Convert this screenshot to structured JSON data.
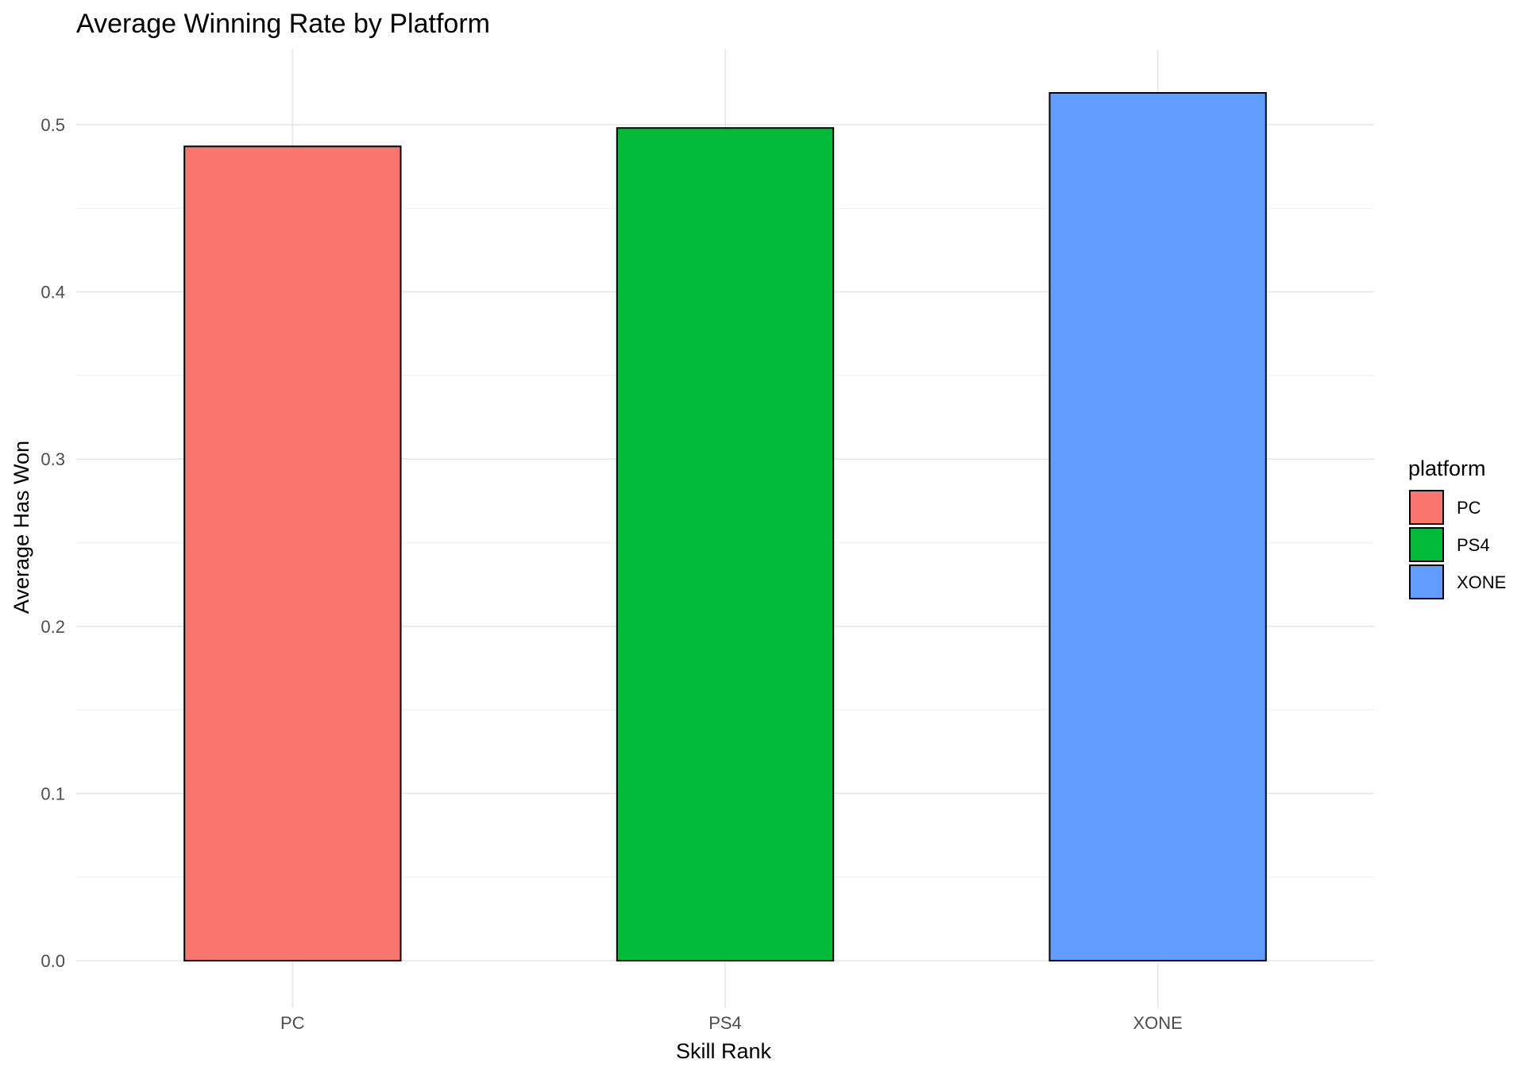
{
  "chart_data": {
    "type": "bar",
    "title": "Average Winning Rate by Platform",
    "xlabel": "Skill Rank",
    "ylabel": "Average Has Won",
    "categories": [
      "PC",
      "PS4",
      "XONE"
    ],
    "values": [
      0.487,
      0.498,
      0.519
    ],
    "colors": [
      "#F8766D",
      "#00BA38",
      "#619CFF"
    ],
    "ylim": [
      0,
      0.545
    ],
    "yticks": [
      0.0,
      0.1,
      0.2,
      0.3,
      0.4,
      0.5
    ],
    "ytick_labels": [
      "0.0",
      "0.1",
      "0.2",
      "0.3",
      "0.4",
      "0.5"
    ],
    "grid": true,
    "legend": {
      "title": "platform",
      "position": "right",
      "items": [
        "PC",
        "PS4",
        "XONE"
      ]
    }
  }
}
